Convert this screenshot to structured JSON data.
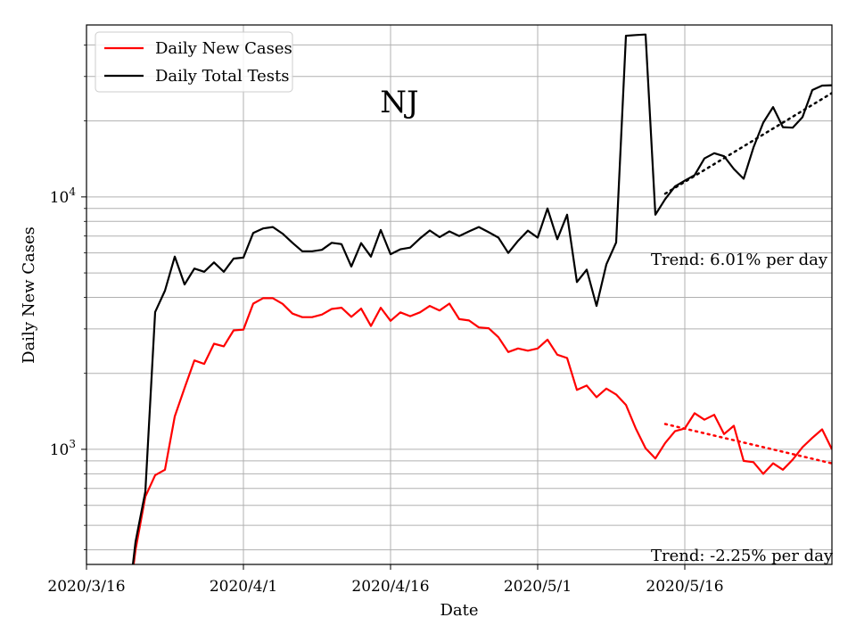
{
  "chart_data": {
    "type": "line",
    "title": "NJ",
    "xlabel": "Date",
    "ylabel": "Daily New Cases",
    "y_scale": "log",
    "ylim": [
      350,
      48000
    ],
    "xlim": [
      "2020-03-16",
      "2020-05-31"
    ],
    "x_ticks": [
      {
        "date": "2020-03-16",
        "label": "2020/3/16"
      },
      {
        "date": "2020-04-01",
        "label": "2020/4/1"
      },
      {
        "date": "2020-04-16",
        "label": "2020/4/16"
      },
      {
        "date": "2020-05-01",
        "label": "2020/5/1"
      },
      {
        "date": "2020-05-16",
        "label": "2020/5/16"
      }
    ],
    "y_ticks": [
      {
        "value": 1000,
        "label_base": "10",
        "label_exp": "3"
      },
      {
        "value": 10000,
        "label_base": "10",
        "label_exp": "4"
      }
    ],
    "grid": true,
    "legend_position": "top-left",
    "series": [
      {
        "name": "Daily New Cases",
        "color": "#ff0000",
        "x": [
          "2020-03-20",
          "2020-03-21",
          "2020-03-22",
          "2020-03-23",
          "2020-03-24",
          "2020-03-25",
          "2020-03-26",
          "2020-03-27",
          "2020-03-28",
          "2020-03-29",
          "2020-03-30",
          "2020-03-31",
          "2020-04-01",
          "2020-04-02",
          "2020-04-03",
          "2020-04-04",
          "2020-04-05",
          "2020-04-06",
          "2020-04-07",
          "2020-04-08",
          "2020-04-09",
          "2020-04-10",
          "2020-04-11",
          "2020-04-12",
          "2020-04-13",
          "2020-04-14",
          "2020-04-15",
          "2020-04-16",
          "2020-04-17",
          "2020-04-18",
          "2020-04-19",
          "2020-04-20",
          "2020-04-21",
          "2020-04-22",
          "2020-04-23",
          "2020-04-24",
          "2020-04-25",
          "2020-04-26",
          "2020-04-27",
          "2020-04-28",
          "2020-04-29",
          "2020-04-30",
          "2020-05-01",
          "2020-05-02",
          "2020-05-03",
          "2020-05-04",
          "2020-05-05",
          "2020-05-06",
          "2020-05-07",
          "2020-05-08",
          "2020-05-09",
          "2020-05-10",
          "2020-05-11",
          "2020-05-12",
          "2020-05-13",
          "2020-05-14",
          "2020-05-15",
          "2020-05-16",
          "2020-05-17",
          "2020-05-18",
          "2020-05-19",
          "2020-05-20",
          "2020-05-21",
          "2020-05-22",
          "2020-05-23",
          "2020-05-24",
          "2020-05-25",
          "2020-05-26",
          "2020-05-27",
          "2020-05-28",
          "2020-05-29",
          "2020-05-30",
          "2020-05-31"
        ],
        "y": [
          200,
          400,
          650,
          790,
          830,
          1350,
          1750,
          2250,
          2180,
          2620,
          2560,
          2960,
          2980,
          3780,
          3970,
          3970,
          3770,
          3450,
          3340,
          3340,
          3420,
          3600,
          3640,
          3350,
          3610,
          3080,
          3640,
          3230,
          3490,
          3370,
          3490,
          3700,
          3550,
          3780,
          3280,
          3240,
          3040,
          3020,
          2780,
          2430,
          2510,
          2460,
          2510,
          2720,
          2370,
          2300,
          1720,
          1790,
          1610,
          1740,
          1650,
          1500,
          1210,
          1010,
          920,
          1060,
          1180,
          1210,
          1390,
          1310,
          1370,
          1150,
          1240,
          900,
          890,
          800,
          880,
          830,
          910,
          1020,
          1110,
          1200,
          1000
        ]
      },
      {
        "name": "Daily Total Tests",
        "color": "#000000",
        "x": [
          "2020-03-20",
          "2020-03-21",
          "2020-03-22",
          "2020-03-23",
          "2020-03-24",
          "2020-03-25",
          "2020-03-26",
          "2020-03-27",
          "2020-03-28",
          "2020-03-29",
          "2020-03-30",
          "2020-03-31",
          "2020-04-01",
          "2020-04-02",
          "2020-04-03",
          "2020-04-04",
          "2020-04-05",
          "2020-04-06",
          "2020-04-07",
          "2020-04-08",
          "2020-04-09",
          "2020-04-10",
          "2020-04-11",
          "2020-04-12",
          "2020-04-13",
          "2020-04-14",
          "2020-04-15",
          "2020-04-16",
          "2020-04-17",
          "2020-04-18",
          "2020-04-19",
          "2020-04-20",
          "2020-04-21",
          "2020-04-22",
          "2020-04-23",
          "2020-04-24",
          "2020-04-25",
          "2020-04-26",
          "2020-04-27",
          "2020-04-28",
          "2020-04-29",
          "2020-04-30",
          "2020-05-01",
          "2020-05-02",
          "2020-05-03",
          "2020-05-04",
          "2020-05-05",
          "2020-05-06",
          "2020-05-07",
          "2020-05-08",
          "2020-05-09",
          "2020-05-10",
          "2020-05-11",
          "2020-05-12",
          "2020-05-13",
          "2020-05-14",
          "2020-05-15",
          "2020-05-16",
          "2020-05-17",
          "2020-05-18",
          "2020-05-19",
          "2020-05-20",
          "2020-05-21",
          "2020-05-22",
          "2020-05-23",
          "2020-05-24",
          "2020-05-25",
          "2020-05-26",
          "2020-05-27",
          "2020-05-28",
          "2020-05-29",
          "2020-05-30",
          "2020-05-31"
        ],
        "y": [
          200,
          430,
          680,
          3500,
          4250,
          5800,
          4500,
          5200,
          5050,
          5500,
          5050,
          5700,
          5750,
          7200,
          7500,
          7600,
          7150,
          6580,
          6090,
          6090,
          6170,
          6580,
          6500,
          5300,
          6560,
          5800,
          7400,
          5930,
          6200,
          6300,
          6850,
          7360,
          6930,
          7300,
          7000,
          7300,
          7600,
          7250,
          6900,
          6000,
          6700,
          7350,
          6900,
          9000,
          6800,
          8500,
          4600,
          5150,
          3700,
          5400,
          6600,
          43500,
          43800,
          44000,
          8500,
          9800,
          11000,
          11600,
          12200,
          14200,
          14900,
          14500,
          12900,
          11800,
          15700,
          19700,
          22700,
          18900,
          18800,
          20700,
          26500,
          27600,
          27700
        ]
      }
    ],
    "trend_lines": [
      {
        "series": "Daily Total Tests",
        "style": "dotted",
        "color": "#000000",
        "x": [
          "2020-05-14",
          "2020-05-31"
        ],
        "y": [
          10300,
          25800
        ]
      },
      {
        "series": "Daily New Cases",
        "style": "dotted",
        "color": "#ff0000",
        "x": [
          "2020-05-14",
          "2020-05-31"
        ],
        "y": [
          1260,
          880
        ]
      }
    ],
    "annotations": [
      {
        "text": "Trend: 6.01% per day"
      },
      {
        "text": "Trend: -2.25% per day"
      }
    ]
  }
}
